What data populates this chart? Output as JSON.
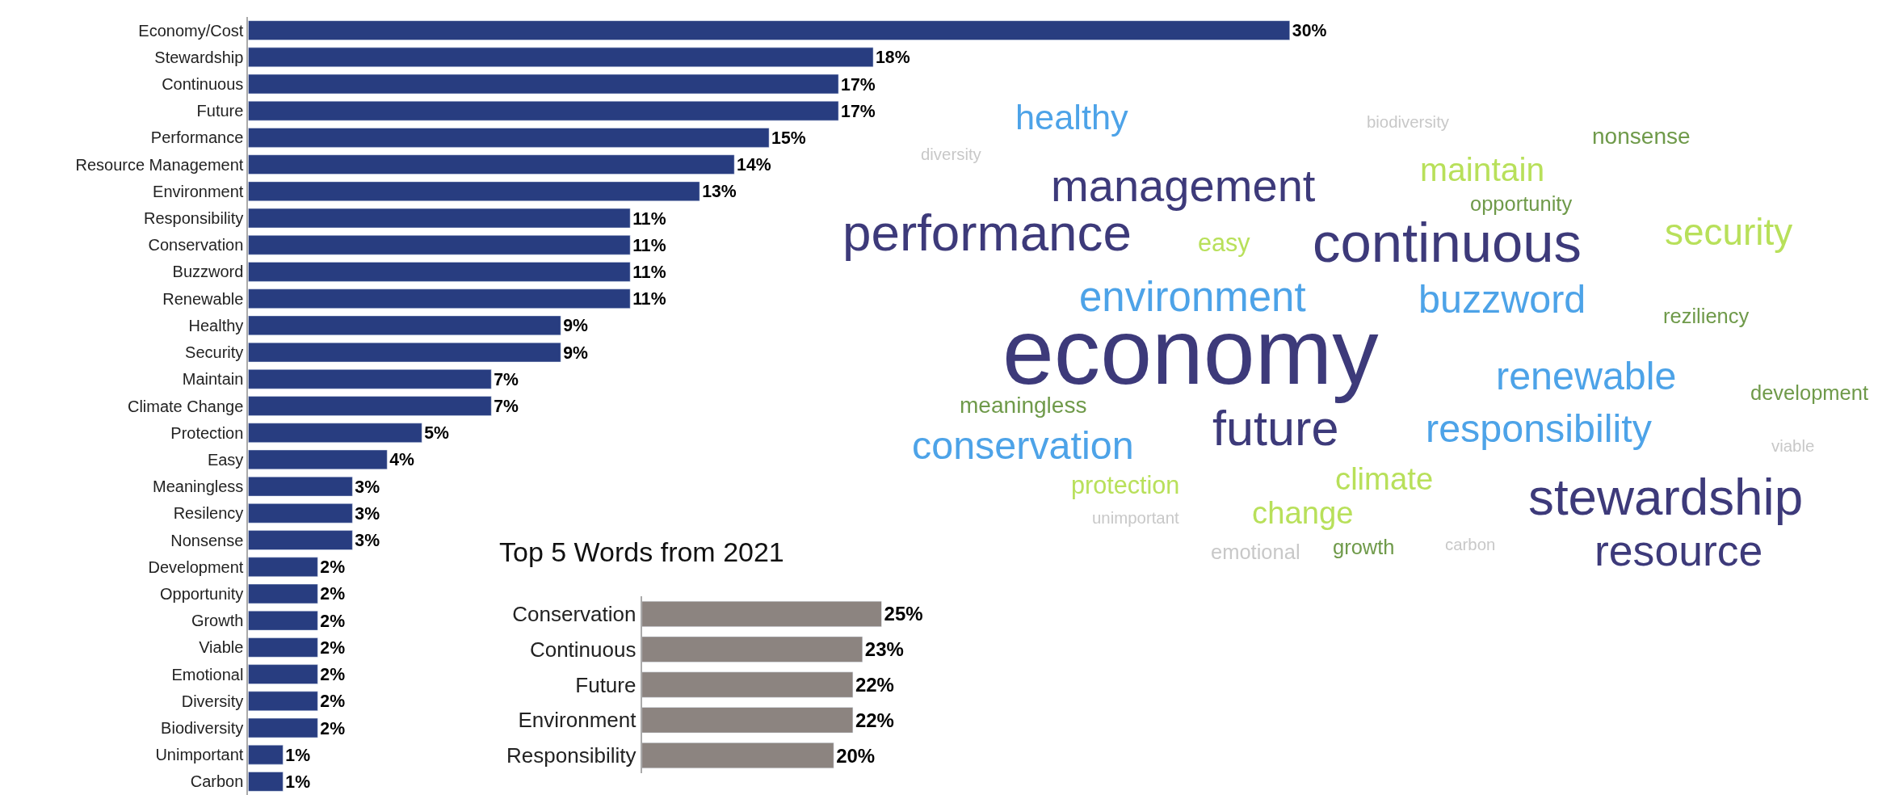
{
  "chart_data": [
    {
      "type": "bar",
      "orientation": "horizontal",
      "color": "#283d80",
      "categories": [
        "Economy/Cost",
        "Stewardship",
        "Continuous",
        "Future",
        "Performance",
        "Resource Management",
        "Environment",
        "Responsibility",
        "Conservation",
        "Buzzword",
        "Renewable",
        "Healthy",
        "Security",
        "Maintain",
        "Climate Change",
        "Protection",
        "Easy",
        "Meaningless",
        "Resilency",
        "Nonsense",
        "Development",
        "Opportunity",
        "Growth",
        "Viable",
        "Emotional",
        "Diversity",
        "Biodiversity",
        "Unimportant",
        "Carbon"
      ],
      "values": [
        30,
        18,
        17,
        17,
        15,
        14,
        13,
        11,
        11,
        11,
        11,
        9,
        9,
        7,
        7,
        5,
        4,
        3,
        3,
        3,
        2,
        2,
        2,
        2,
        2,
        2,
        2,
        1,
        1
      ],
      "value_labels": [
        "30%",
        "18%",
        "17%",
        "17%",
        "15%",
        "14%",
        "13%",
        "11%",
        "11%",
        "11%",
        "11%",
        "9%",
        "9%",
        "7%",
        "7%",
        "5%",
        "4%",
        "3%",
        "3%",
        "3%",
        "2%",
        "2%",
        "2%",
        "2%",
        "2%",
        "2%",
        "2%",
        "1%",
        "1%"
      ],
      "tick_labels": "y"
    },
    {
      "type": "other",
      "annotations": [
        "healthy",
        "biodiversity",
        "nonsense",
        "diversity",
        "maintain",
        "management",
        "opportunity",
        "performance",
        "easy",
        "continuous",
        "security",
        "environment",
        "buzzword",
        "reziliency",
        "economy",
        "renewable",
        "meaningless",
        "development",
        "future",
        "responsibility",
        "conservation",
        "viable",
        "climate",
        "protection",
        "change",
        "stewardship",
        "unimportant",
        "emotional",
        "growth",
        "carbon",
        "resource"
      ],
      "colors": [
        "#4da3e8",
        "#c8c8c8",
        "#6f9a4a",
        "#c8c8c8",
        "#b8e05a",
        "#3d3a7a",
        "#6f9a4a",
        "#3d3a7a",
        "#b8e05a",
        "#3d3a7a",
        "#b8e05a",
        "#4da3e8",
        "#4da3e8",
        "#6f9a4a",
        "#3d3a7a",
        "#4da3e8",
        "#6f9a4a",
        "#6f9a4a",
        "#3d3a7a",
        "#4da3e8",
        "#4da3e8",
        "#c8c8c8",
        "#b8e05a",
        "#b8e05a",
        "#b8e05a",
        "#3d3a7a",
        "#c8c8c8",
        "#c8c8c8",
        "#6f9a4a",
        "#c8c8c8",
        "#3d3a7a"
      ]
    },
    {
      "type": "bar",
      "orientation": "horizontal",
      "title": "Top 5 Words from 2021",
      "color": "#8c8480",
      "categories": [
        "Conservation",
        "Continuous",
        "Future",
        "Environment",
        "Responsibility"
      ],
      "values": [
        25,
        23,
        22,
        22,
        20
      ],
      "value_labels": [
        "25%",
        "23%",
        "22%",
        "22%",
        "20%"
      ],
      "tick_labels": "y"
    }
  ]
}
